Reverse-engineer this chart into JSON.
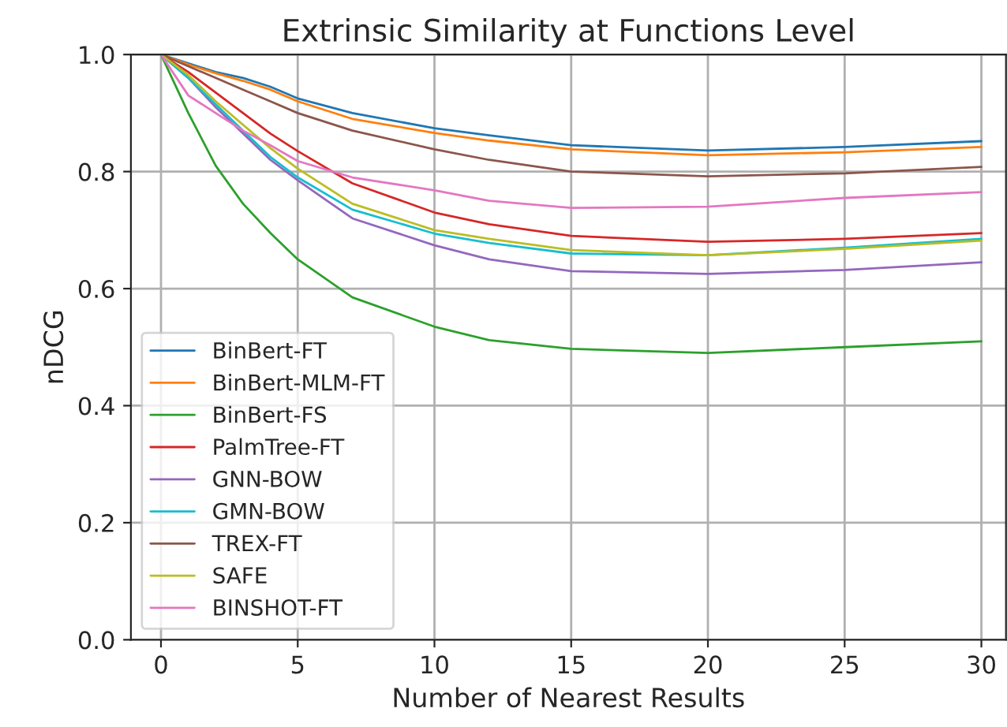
{
  "chart_data": {
    "type": "line",
    "title": "Extrinsic Similarity at Functions Level",
    "xlabel": "Number of Nearest Results",
    "ylabel": "nDCG",
    "x": [
      0,
      1,
      2,
      3,
      4,
      5,
      7,
      10,
      12,
      15,
      20,
      25,
      30
    ],
    "series": [
      {
        "name": "BinBert-FT",
        "color": "#1f77b4",
        "values": [
          1.0,
          0.985,
          0.97,
          0.96,
          0.945,
          0.925,
          0.9,
          0.874,
          0.862,
          0.845,
          0.836,
          0.842,
          0.852
        ]
      },
      {
        "name": "BinBert-MLM-FT",
        "color": "#ff7f0e",
        "values": [
          1.0,
          0.983,
          0.968,
          0.955,
          0.94,
          0.92,
          0.89,
          0.866,
          0.853,
          0.838,
          0.828,
          0.833,
          0.842
        ]
      },
      {
        "name": "BinBert-FS",
        "color": "#2ca02c",
        "values": [
          1.0,
          0.9,
          0.81,
          0.745,
          0.695,
          0.65,
          0.585,
          0.535,
          0.512,
          0.497,
          0.49,
          0.5,
          0.51
        ]
      },
      {
        "name": "PalmTree-FT",
        "color": "#d62728",
        "values": [
          1.0,
          0.97,
          0.935,
          0.9,
          0.865,
          0.835,
          0.78,
          0.73,
          0.71,
          0.69,
          0.68,
          0.685,
          0.695
        ]
      },
      {
        "name": "GNN-BOW",
        "color": "#9467bd",
        "values": [
          1.0,
          0.96,
          0.91,
          0.865,
          0.82,
          0.785,
          0.72,
          0.674,
          0.65,
          0.63,
          0.625,
          0.632,
          0.645
        ]
      },
      {
        "name": "GMN-BOW",
        "color": "#17becf",
        "values": [
          1.0,
          0.96,
          0.915,
          0.87,
          0.825,
          0.79,
          0.735,
          0.694,
          0.678,
          0.66,
          0.657,
          0.67,
          0.685
        ]
      },
      {
        "name": "TREX-FT",
        "color": "#8c564b",
        "values": [
          1.0,
          0.98,
          0.96,
          0.94,
          0.92,
          0.9,
          0.87,
          0.838,
          0.82,
          0.8,
          0.792,
          0.797,
          0.808
        ]
      },
      {
        "name": "SAFE",
        "color": "#bcbd22",
        "values": [
          1.0,
          0.965,
          0.92,
          0.88,
          0.84,
          0.805,
          0.745,
          0.7,
          0.685,
          0.666,
          0.657,
          0.668,
          0.682
        ]
      },
      {
        "name": "BINSHOT-FT",
        "color": "#e377c2",
        "values": [
          1.0,
          0.93,
          0.9,
          0.87,
          0.845,
          0.818,
          0.79,
          0.768,
          0.75,
          0.738,
          0.74,
          0.755,
          0.765
        ]
      }
    ],
    "xlim": [
      -1.1,
      30.9
    ],
    "ylim": [
      0,
      1
    ],
    "xticks": [
      0,
      5,
      10,
      15,
      20,
      25,
      30
    ],
    "yticks": [
      {
        "value": 0,
        "label": "0.0"
      },
      {
        "value": 0.2,
        "label": "0.2"
      },
      {
        "value": 0.4,
        "label": "0.4"
      },
      {
        "value": 0.6,
        "label": "0.6"
      },
      {
        "value": 0.8,
        "label": "0.8"
      },
      {
        "value": 1.0,
        "label": "1.0"
      }
    ],
    "grid": true,
    "legend": "bottom left"
  }
}
